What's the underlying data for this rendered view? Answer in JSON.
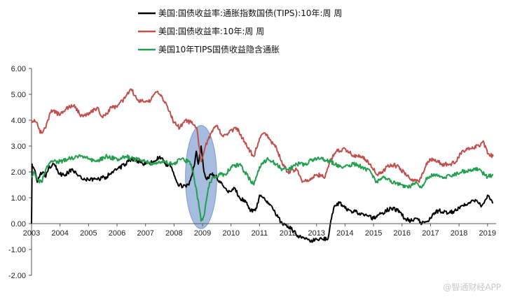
{
  "chart_data": {
    "type": "line",
    "title": "",
    "xlabel": "",
    "ylabel": "",
    "ylim": [
      -2.0,
      6.0
    ],
    "xlim": [
      2003.0,
      2019.3
    ],
    "yticks": [
      "6.00",
      "5.00",
      "4.00",
      "3.00",
      "2.00",
      "1.00",
      "0.00",
      "-1.00",
      "-2.00"
    ],
    "xticks": [
      "2003",
      "2004",
      "2005",
      "2006",
      "2007",
      "2008",
      "2009",
      "2010",
      "2011",
      "2012",
      "2013",
      "2014",
      "2015",
      "2016",
      "2017",
      "2018",
      "2019"
    ],
    "legend_position": "top",
    "series": [
      {
        "name": "美国:国债收益率:通胀指数国债(TIPS):10年:周  周",
        "color": "#000000",
        "x": [
          2003.0,
          2003.02,
          2003.05,
          2003.1,
          2003.2,
          2003.3,
          2003.4,
          2003.5,
          2003.6,
          2003.8,
          2004.0,
          2004.2,
          2004.4,
          2004.6,
          2004.8,
          2005.0,
          2005.3,
          2005.6,
          2006.0,
          2006.3,
          2006.5,
          2006.8,
          2007.0,
          2007.3,
          2007.5,
          2007.7,
          2007.9,
          2008.1,
          2008.3,
          2008.5,
          2008.6,
          2008.7,
          2008.78,
          2008.85,
          2008.95,
          2009.05,
          2009.15,
          2009.3,
          2009.5,
          2009.7,
          2009.9,
          2010.1,
          2010.3,
          2010.5,
          2010.7,
          2010.9,
          2011.0,
          2011.2,
          2011.4,
          2011.6,
          2011.8,
          2012.0,
          2012.2,
          2012.4,
          2012.6,
          2012.8,
          2013.0,
          2013.2,
          2013.4,
          2013.5,
          2013.6,
          2013.7,
          2013.8,
          2014.0,
          2014.2,
          2014.5,
          2014.8,
          2015.0,
          2015.3,
          2015.6,
          2015.9,
          2016.1,
          2016.3,
          2016.5,
          2016.7,
          2016.9,
          2017.1,
          2017.3,
          2017.6,
          2017.9,
          2018.1,
          2018.4,
          2018.6,
          2018.8,
          2019.0,
          2019.2
        ],
        "values": [
          0.0,
          2.3,
          2.2,
          2.1,
          1.6,
          1.9,
          2.0,
          1.8,
          2.2,
          2.3,
          1.9,
          1.9,
          2.1,
          1.9,
          1.7,
          1.7,
          1.7,
          1.8,
          2.1,
          2.3,
          2.5,
          2.4,
          2.3,
          2.4,
          2.6,
          2.3,
          2.2,
          1.6,
          1.4,
          1.5,
          1.8,
          2.2,
          2.8,
          2.3,
          3.0,
          2.0,
          1.7,
          1.9,
          1.8,
          1.5,
          1.2,
          1.4,
          1.0,
          0.9,
          0.5,
          0.6,
          1.1,
          0.9,
          0.7,
          0.3,
          0.0,
          -0.1,
          -0.3,
          -0.5,
          -0.6,
          -0.7,
          -0.6,
          -0.6,
          -0.6,
          0.1,
          0.6,
          0.7,
          0.8,
          0.6,
          0.5,
          0.4,
          0.3,
          0.2,
          0.4,
          0.6,
          0.5,
          0.2,
          0.1,
          0.2,
          0.0,
          0.1,
          0.4,
          0.5,
          0.4,
          0.5,
          0.7,
          0.8,
          0.9,
          0.7,
          1.1,
          0.8
        ]
      },
      {
        "name": "美国:国债收益率:10年:周  周",
        "color": "#c0504d",
        "x": [
          2003.0,
          2003.2,
          2003.3,
          2003.5,
          2003.7,
          2004.0,
          2004.3,
          2004.5,
          2004.7,
          2005.0,
          2005.3,
          2005.5,
          2005.8,
          2006.0,
          2006.3,
          2006.5,
          2006.7,
          2007.0,
          2007.2,
          2007.4,
          2007.5,
          2007.7,
          2008.0,
          2008.2,
          2008.4,
          2008.6,
          2008.8,
          2008.95,
          2009.1,
          2009.3,
          2009.5,
          2009.7,
          2009.9,
          2010.2,
          2010.4,
          2010.6,
          2010.8,
          2011.0,
          2011.2,
          2011.4,
          2011.6,
          2011.8,
          2012.0,
          2012.3,
          2012.5,
          2012.8,
          2013.0,
          2013.3,
          2013.5,
          2013.7,
          2014.0,
          2014.3,
          2014.6,
          2014.9,
          2015.1,
          2015.3,
          2015.6,
          2015.9,
          2016.1,
          2016.4,
          2016.6,
          2016.9,
          2017.1,
          2017.4,
          2017.7,
          2017.9,
          2018.1,
          2018.4,
          2018.7,
          2018.85,
          2019.0,
          2019.2
        ],
        "values": [
          4.0,
          3.9,
          3.5,
          3.7,
          4.4,
          4.2,
          4.5,
          4.6,
          4.2,
          4.2,
          4.5,
          4.1,
          4.5,
          4.5,
          4.9,
          5.2,
          4.8,
          4.7,
          4.8,
          5.1,
          5.0,
          4.7,
          3.9,
          3.7,
          4.0,
          3.9,
          3.7,
          2.4,
          3.0,
          3.5,
          3.8,
          3.4,
          3.5,
          3.7,
          3.3,
          2.9,
          2.6,
          3.3,
          3.5,
          3.2,
          2.9,
          2.3,
          2.0,
          2.1,
          1.6,
          1.7,
          1.9,
          1.8,
          2.5,
          2.8,
          2.9,
          2.6,
          2.6,
          2.3,
          1.9,
          2.0,
          2.3,
          2.2,
          1.9,
          1.7,
          1.6,
          2.4,
          2.5,
          2.3,
          2.3,
          2.4,
          2.8,
          2.9,
          3.0,
          3.2,
          2.7,
          2.6
        ]
      },
      {
        "name": "美国10年TIPS国债收益隐含通胀",
        "color": "#22a050",
        "x": [
          2003.0,
          2003.1,
          2003.2,
          2003.35,
          2003.5,
          2003.7,
          2004.0,
          2004.3,
          2004.6,
          2005.0,
          2005.3,
          2005.6,
          2006.0,
          2006.3,
          2006.6,
          2007.0,
          2007.3,
          2007.6,
          2008.0,
          2008.2,
          2008.5,
          2008.6,
          2008.7,
          2008.8,
          2008.9,
          2008.95,
          2009.05,
          2009.15,
          2009.25,
          2009.4,
          2009.6,
          2009.8,
          2010.0,
          2010.3,
          2010.6,
          2010.8,
          2011.0,
          2011.3,
          2011.6,
          2011.8,
          2012.0,
          2012.3,
          2012.6,
          2012.9,
          2013.2,
          2013.5,
          2013.8,
          2014.0,
          2014.3,
          2014.6,
          2014.9,
          2015.1,
          2015.4,
          2015.7,
          2016.0,
          2016.2,
          2016.5,
          2016.7,
          2016.9,
          2017.2,
          2017.5,
          2017.8,
          2018.1,
          2018.4,
          2018.7,
          2019.0,
          2019.2
        ],
        "values": [
          1.8,
          2.0,
          1.7,
          1.6,
          2.1,
          2.4,
          2.4,
          2.5,
          2.6,
          2.5,
          2.4,
          2.6,
          2.5,
          2.6,
          2.5,
          2.4,
          2.3,
          2.4,
          2.3,
          2.5,
          2.4,
          2.3,
          1.8,
          1.2,
          0.5,
          0.1,
          0.3,
          1.0,
          1.6,
          1.8,
          1.9,
          1.9,
          2.2,
          2.3,
          1.8,
          1.5,
          2.2,
          2.5,
          2.3,
          2.1,
          2.1,
          2.3,
          2.3,
          2.5,
          2.5,
          2.4,
          2.2,
          2.2,
          2.3,
          2.2,
          2.0,
          1.6,
          1.8,
          1.6,
          1.5,
          1.4,
          1.6,
          1.4,
          1.8,
          1.9,
          1.8,
          1.9,
          2.0,
          2.1,
          2.1,
          1.8,
          1.9
        ]
      }
    ],
    "annotations": [
      {
        "type": "ellipse",
        "label": "2008-2009 financial crisis highlight",
        "x": 2008.95,
        "y": 1.8,
        "rx_years": 0.55,
        "ry": 2.0,
        "color": "#3b6cb7"
      }
    ]
  },
  "watermark": "@智通财经APP"
}
